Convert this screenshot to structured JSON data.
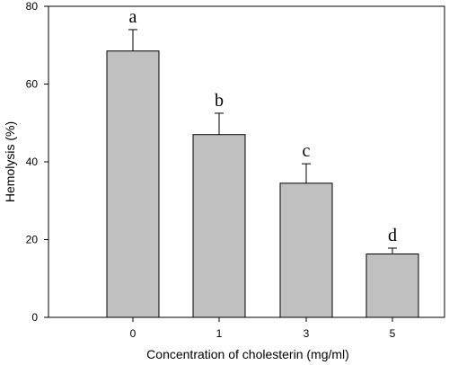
{
  "chart_data": {
    "type": "bar",
    "title": "",
    "xlabel": "Concentration of cholesterin (mg/ml)",
    "ylabel": "Hemolysis (%)",
    "categories": [
      "0",
      "1",
      "3",
      "5"
    ],
    "values": [
      68.5,
      47.0,
      34.5,
      16.3
    ],
    "error_upper": [
      5.5,
      5.5,
      5.0,
      1.5
    ],
    "significance_labels": [
      "a",
      "b",
      "c",
      "d"
    ],
    "ylim": [
      0,
      80
    ],
    "y_ticks": [
      0,
      20,
      40,
      60,
      80
    ],
    "grid": false,
    "bar_color": "#c0c0c0",
    "bar_edge_color": "#000000"
  }
}
